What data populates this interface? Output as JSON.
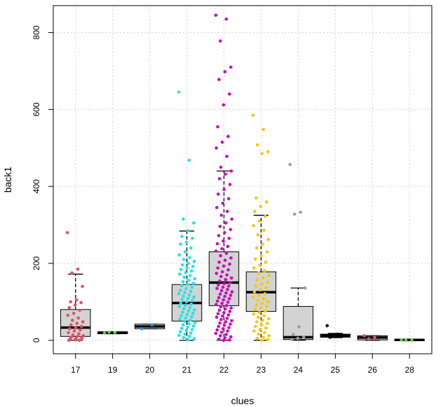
{
  "chart_data": {
    "type": "boxplot",
    "title": "",
    "xlabel": "clues",
    "ylabel": "back1",
    "ylim": [
      -35,
      870
    ],
    "y_ticks": [
      0,
      200,
      400,
      600,
      800
    ],
    "grid": true,
    "categories": [
      "17",
      "19",
      "20",
      "21",
      "22",
      "23",
      "24",
      "25",
      "26",
      "28"
    ],
    "colors": {
      "box_fill": "#d3d3d3",
      "17": "#df536b",
      "19": "#61d04f",
      "20": "#2297e6",
      "21": "#28e2e5",
      "22": "#cd0bbc",
      "23": "#f5c710",
      "24": "#9e9e9e",
      "25": "#000000",
      "26": "#df536b",
      "28": "#61d04f"
    },
    "boxes": [
      {
        "category": "17",
        "min": 0,
        "q1": 10,
        "median": 33,
        "q3": 80,
        "max": 172
      },
      {
        "category": "19",
        "min": 17,
        "q1": 17,
        "median": 20,
        "q3": 22,
        "max": 22
      },
      {
        "category": "20",
        "min": 30,
        "q1": 30,
        "median": 36,
        "q3": 42,
        "max": 42
      },
      {
        "category": "21",
        "min": 0,
        "q1": 50,
        "median": 97,
        "q3": 145,
        "max": 284
      },
      {
        "category": "22",
        "min": 0,
        "q1": 90,
        "median": 150,
        "q3": 230,
        "max": 440
      },
      {
        "category": "23",
        "min": 0,
        "q1": 75,
        "median": 125,
        "q3": 178,
        "max": 325
      },
      {
        "category": "24",
        "min": 0,
        "q1": 2,
        "median": 8,
        "q3": 88,
        "max": 136
      },
      {
        "category": "25",
        "min": 7,
        "q1": 8,
        "median": 12,
        "q3": 16,
        "max": 18
      },
      {
        "category": "26",
        "min": 0,
        "q1": 1,
        "median": 7,
        "q3": 12,
        "max": 12
      },
      {
        "category": "28",
        "min": 0,
        "q1": 0,
        "median": 1,
        "q3": 2,
        "max": 2
      }
    ],
    "points": [
      {
        "category": "17",
        "values": [
          280,
          185,
          175,
          140,
          105,
          100,
          98,
          92,
          85,
          78,
          70,
          65,
          58,
          52,
          48,
          44,
          40,
          36,
          32,
          30,
          27,
          24,
          20,
          17,
          14,
          12,
          10,
          8,
          6,
          5,
          4,
          2,
          1,
          0,
          0
        ]
      },
      {
        "category": "19",
        "values": [
          19,
          20,
          21
        ]
      },
      {
        "category": "20",
        "values": [
          30,
          40
        ]
      },
      {
        "category": "21",
        "values": [
          645,
          468,
          315,
          305,
          285,
          270,
          265,
          255,
          250,
          240,
          230,
          222,
          215,
          210,
          205,
          200,
          196,
          192,
          188,
          184,
          180,
          176,
          172,
          168,
          164,
          160,
          156,
          152,
          148,
          145,
          142,
          138,
          134,
          130,
          127,
          124,
          121,
          118,
          115,
          112,
          109,
          106,
          103,
          100,
          97,
          94,
          91,
          88,
          85,
          82,
          79,
          76,
          73,
          70,
          67,
          64,
          61,
          58,
          55,
          52,
          49,
          46,
          43,
          40,
          37,
          34,
          31,
          28,
          25,
          22,
          19,
          16,
          13,
          10,
          7,
          4,
          1
        ]
      },
      {
        "category": "22",
        "values": [
          845,
          835,
          778,
          710,
          698,
          678,
          640,
          612,
          555,
          530,
          515,
          500,
          478,
          450,
          440,
          432,
          420,
          405,
          392,
          380,
          368,
          356,
          345,
          335,
          325,
          315,
          305,
          296,
          288,
          280,
          272,
          265,
          258,
          251,
          244,
          238,
          232,
          226,
          220,
          214,
          208,
          203,
          198,
          193,
          188,
          183,
          178,
          174,
          170,
          166,
          162,
          158,
          154,
          150,
          147,
          144,
          141,
          138,
          135,
          132,
          129,
          126,
          123,
          120,
          117,
          114,
          111,
          108,
          105,
          102,
          99,
          96,
          93,
          90,
          87,
          84,
          81,
          78,
          75,
          72,
          69,
          66,
          63,
          60,
          57,
          54,
          51,
          48,
          45,
          42,
          39,
          36,
          33,
          30,
          27,
          24,
          21,
          18,
          15,
          12,
          9,
          6,
          3,
          1,
          0
        ]
      },
      {
        "category": "23",
        "values": [
          585,
          548,
          508,
          490,
          485,
          370,
          360,
          348,
          335,
          322,
          310,
          298,
          286,
          274,
          262,
          250,
          240,
          230,
          220,
          211,
          203,
          195,
          188,
          181,
          175,
          169,
          163,
          157,
          151,
          146,
          141,
          136,
          131,
          126,
          121,
          116,
          112,
          108,
          104,
          100,
          96,
          92,
          88,
          84,
          80,
          76,
          72,
          68,
          64,
          60,
          56,
          52,
          48,
          44,
          40,
          36,
          32,
          28,
          24,
          20,
          16,
          12,
          8,
          5,
          2,
          0
        ]
      },
      {
        "category": "24",
        "values": [
          457,
          333,
          328,
          136,
          35,
          15,
          8,
          5,
          2
        ]
      },
      {
        "category": "25",
        "values": [
          38,
          16,
          14,
          12,
          10,
          8
        ]
      },
      {
        "category": "26",
        "values": [
          12,
          8,
          4
        ]
      },
      {
        "category": "28",
        "values": [
          1,
          0,
          0
        ]
      }
    ]
  }
}
